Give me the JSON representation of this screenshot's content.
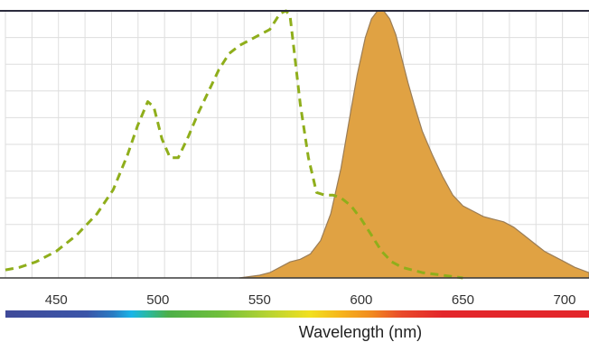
{
  "chart_data": {
    "type": "area",
    "xlabel": "Wavelength (nm)",
    "ylabel": "",
    "xlim": [
      425,
      712
    ],
    "ylim": [
      0,
      100
    ],
    "grid": true,
    "x_ticks": [
      450,
      500,
      550,
      600,
      650,
      700
    ],
    "x_tick_labels": [
      "450",
      "500",
      "550",
      "600",
      "650",
      "700"
    ],
    "series": [
      {
        "style": "dashed-line",
        "color": "#8fae1b",
        "x": [
          425,
          432,
          440,
          450,
          460,
          470,
          478,
          485,
          490,
          495,
          498,
          502,
          506,
          510,
          515,
          520,
          525,
          530,
          535,
          540,
          545,
          550,
          555,
          560,
          563,
          565,
          567,
          570,
          574,
          578,
          582,
          586,
          590,
          595,
          600,
          605,
          610,
          615,
          620,
          630,
          640,
          650
        ],
        "y": [
          3,
          4,
          6,
          10,
          16,
          24,
          33,
          46,
          57,
          66,
          64,
          52,
          45,
          45,
          53,
          62,
          70,
          78,
          84,
          87,
          89,
          91,
          93,
          99,
          100,
          98,
          85,
          65,
          45,
          32,
          31,
          31,
          30,
          27,
          22,
          16,
          10,
          6,
          4,
          2,
          1,
          0
        ]
      },
      {
        "style": "filled-area",
        "color": "#e0a243",
        "edge_color": "#9a7d57",
        "x": [
          540,
          550,
          555,
          560,
          565,
          570,
          575,
          580,
          585,
          590,
          595,
          598,
          602,
          605,
          608,
          611,
          614,
          617,
          620,
          623,
          626,
          630,
          635,
          640,
          645,
          650,
          655,
          660,
          665,
          670,
          675,
          680,
          685,
          690,
          695,
          700,
          705,
          712
        ],
        "y": [
          0,
          1,
          2,
          4,
          6,
          7,
          9,
          14,
          24,
          41,
          63,
          76,
          90,
          97,
          100,
          100,
          97,
          91,
          82,
          73,
          65,
          55,
          46,
          38,
          31,
          27,
          25,
          23,
          22,
          21,
          19,
          16,
          13,
          10,
          8,
          6,
          4,
          2
        ]
      }
    ]
  },
  "spectrum_bar": {
    "stops": [
      {
        "x": 425,
        "color": "#3f4a99"
      },
      {
        "x": 465,
        "color": "#3b55a8"
      },
      {
        "x": 478,
        "color": "#2a7cc3"
      },
      {
        "x": 487,
        "color": "#19b5e8"
      },
      {
        "x": 495,
        "color": "#2bb9a0"
      },
      {
        "x": 505,
        "color": "#4caf48"
      },
      {
        "x": 530,
        "color": "#6fbf3c"
      },
      {
        "x": 555,
        "color": "#b9d432"
      },
      {
        "x": 575,
        "color": "#f2e01e"
      },
      {
        "x": 590,
        "color": "#f6b41b"
      },
      {
        "x": 605,
        "color": "#f18a1f"
      },
      {
        "x": 620,
        "color": "#e9492a"
      },
      {
        "x": 640,
        "color": "#e3262b"
      },
      {
        "x": 712,
        "color": "#e3262b"
      }
    ]
  }
}
